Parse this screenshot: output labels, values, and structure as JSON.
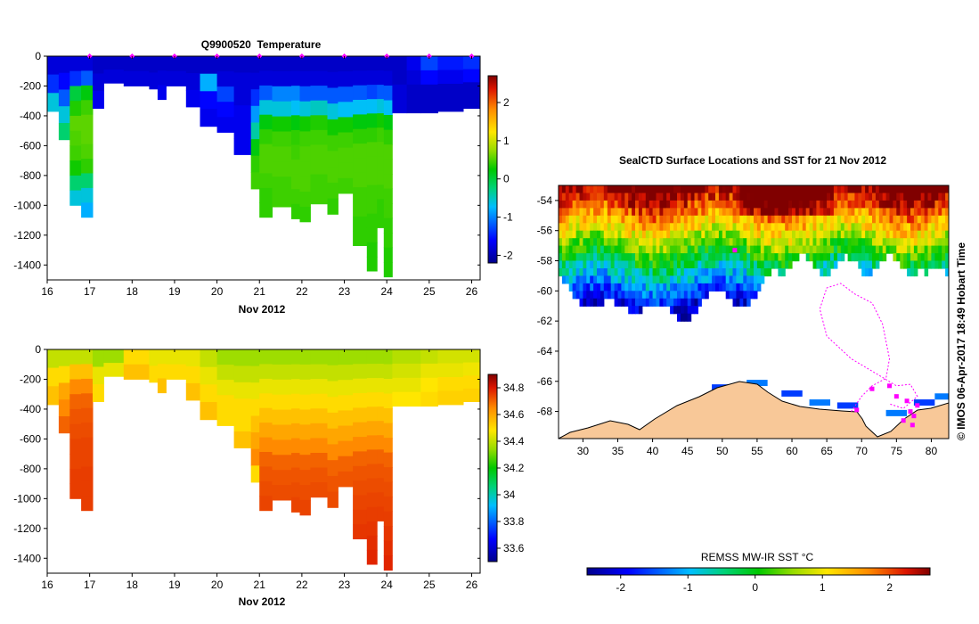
{
  "chart_data": [
    {
      "type": "heatmap",
      "title": "Q9900520  Temperature",
      "xlabel": "Nov 2012",
      "ylabel": "",
      "xlim": [
        16,
        26.2
      ],
      "ylim": [
        -1500,
        0
      ],
      "x_ticks": [
        16,
        17,
        18,
        19,
        20,
        21,
        22,
        23,
        24,
        25,
        26
      ],
      "y_ticks": [
        0,
        -200,
        -400,
        -600,
        -800,
        -1000,
        -1200,
        -1400
      ],
      "colorbar": {
        "min": -2.2,
        "max": 2.7,
        "ticks": [
          2,
          1,
          0,
          -1,
          -2
        ]
      },
      "profile_markers_x": [
        17.0,
        18.0,
        19.0,
        20.0,
        21.0,
        22.0,
        23.0,
        24.0,
        25.0,
        26.0
      ],
      "profiles": [
        {
          "x0": 16.0,
          "x1": 16.27,
          "depth": 370,
          "values": [
            -1.8,
            -1.4,
            -0.6
          ]
        },
        {
          "x0": 16.27,
          "x1": 16.53,
          "depth": 560,
          "values": [
            -1.8,
            -1.6,
            -1.2,
            -0.6,
            -0.2
          ]
        },
        {
          "x0": 16.53,
          "x1": 16.8,
          "depth": 1000,
          "values": [
            -1.8,
            -1.4,
            0.0,
            0.35,
            0.55,
            0.5,
            0.45,
            0.3,
            -0.2,
            -0.6
          ]
        },
        {
          "x0": 16.8,
          "x1": 17.07,
          "depth": 1080,
          "values": [
            -1.8,
            -1.2,
            0.2,
            0.45,
            0.55,
            0.55,
            0.5,
            0.4,
            -0.2,
            -0.6,
            -0.8
          ]
        },
        {
          "x0": 17.07,
          "x1": 17.33,
          "depth": 350,
          "values": [
            -1.9,
            -1.8,
            -1.7
          ]
        },
        {
          "x0": 17.33,
          "x1": 17.8,
          "depth": 180,
          "values": [
            -1.9,
            -1.8
          ]
        },
        {
          "x0": 17.8,
          "x1": 18.4,
          "depth": 200,
          "values": [
            -1.9,
            -1.8
          ]
        },
        {
          "x0": 18.4,
          "x1": 18.6,
          "depth": 220,
          "values": [
            -1.9,
            -1.8
          ]
        },
        {
          "x0": 18.6,
          "x1": 18.8,
          "depth": 290,
          "values": [
            -1.9,
            -1.8,
            -1.7
          ]
        },
        {
          "x0": 18.8,
          "x1": 19.27,
          "depth": 200,
          "values": [
            -1.9,
            -1.8
          ]
        },
        {
          "x0": 19.27,
          "x1": 19.6,
          "depth": 340,
          "values": [
            -1.9,
            -1.8,
            -1.7
          ]
        },
        {
          "x0": 19.6,
          "x1": 20.0,
          "depth": 470,
          "values": [
            -1.9,
            -0.8,
            -1.6,
            -1.7
          ]
        },
        {
          "x0": 20.0,
          "x1": 20.4,
          "depth": 510,
          "values": [
            -1.9,
            -1.8,
            -1.3,
            -1.6,
            -1.7
          ]
        },
        {
          "x0": 20.4,
          "x1": 20.8,
          "depth": 660,
          "values": [
            -1.9,
            -1.8,
            -1.8,
            -1.7,
            -1.7,
            -1.7
          ]
        },
        {
          "x0": 20.8,
          "x1": 21.0,
          "depth": 890,
          "values": [
            -1.9,
            -1.8,
            -1.4,
            -0.9,
            -0.4,
            0.2,
            0.4,
            0.45
          ]
        },
        {
          "x0": 21.0,
          "x1": 21.3,
          "depth": 1080,
          "values": [
            -1.9,
            -1.8,
            -1.2,
            -0.6,
            0.2,
            0.4,
            0.5,
            0.5,
            0.45,
            0.4,
            0.4
          ]
        },
        {
          "x0": 21.3,
          "x1": 21.75,
          "depth": 1010,
          "values": [
            -1.9,
            -1.8,
            -1.0,
            -0.6,
            0.3,
            0.45,
            0.5,
            0.5,
            0.45,
            0.45
          ]
        },
        {
          "x0": 21.75,
          "x1": 21.95,
          "depth": 1090,
          "values": [
            -1.9,
            -1.8,
            -1.0,
            -0.7,
            0.2,
            0.4,
            0.45,
            0.5,
            0.5,
            0.45,
            0.4
          ]
        },
        {
          "x0": 21.95,
          "x1": 22.2,
          "depth": 1110,
          "values": [
            -1.9,
            -1.8,
            -1.2,
            -0.6,
            0.3,
            0.45,
            0.5,
            0.5,
            0.5,
            0.45,
            0.4
          ]
        },
        {
          "x0": 22.2,
          "x1": 22.6,
          "depth": 990,
          "values": [
            -1.9,
            -1.8,
            -1.2,
            -0.5,
            0.35,
            0.45,
            0.5,
            0.5,
            0.45,
            0.45
          ]
        },
        {
          "x0": 22.6,
          "x1": 22.85,
          "depth": 1060,
          "values": [
            -1.9,
            -1.8,
            -1.2,
            -0.6,
            0.3,
            0.45,
            0.5,
            0.5,
            0.45,
            0.4
          ]
        },
        {
          "x0": 22.85,
          "x1": 23.2,
          "depth": 920,
          "values": [
            -1.9,
            -1.8,
            -1.2,
            -0.7,
            0.3,
            0.45,
            0.5,
            0.5,
            0.45
          ]
        },
        {
          "x0": 23.2,
          "x1": 23.53,
          "depth": 1270,
          "values": [
            -1.9,
            -1.8,
            -1.2,
            -0.7,
            0.2,
            0.4,
            0.5,
            0.5,
            0.5,
            0.45,
            0.45,
            0.4,
            0.4
          ]
        },
        {
          "x0": 23.53,
          "x1": 23.77,
          "depth": 1440,
          "values": [
            -1.9,
            -1.8,
            -1.3,
            -0.7,
            0.2,
            0.4,
            0.5,
            0.5,
            0.5,
            0.45,
            0.45,
            0.4,
            0.4,
            0.35,
            0.35
          ]
        },
        {
          "x0": 23.77,
          "x1": 23.93,
          "depth": 1150,
          "values": [
            -1.9,
            -1.8,
            -1.2,
            -0.6,
            0.3,
            0.45,
            0.5,
            0.5,
            0.5,
            0.45,
            0.4,
            0.4
          ]
        },
        {
          "x0": 23.93,
          "x1": 24.13,
          "depth": 1480,
          "values": [
            -1.9,
            -1.8,
            -1.2,
            -0.7,
            0.2,
            0.4,
            0.5,
            0.5,
            0.5,
            0.45,
            0.45,
            0.4,
            0.4,
            0.35,
            0.35
          ]
        },
        {
          "x0": 24.13,
          "x1": 24.47,
          "depth": 380,
          "values": [
            -1.9,
            -1.9,
            -1.8,
            -1.8
          ]
        },
        {
          "x0": 24.47,
          "x1": 24.8,
          "depth": 380,
          "values": [
            -1.7,
            -1.8,
            -1.9,
            -1.9
          ]
        },
        {
          "x0": 24.8,
          "x1": 25.2,
          "depth": 380,
          "values": [
            -1.3,
            -1.6,
            -1.9,
            -1.9
          ]
        },
        {
          "x0": 25.2,
          "x1": 25.8,
          "depth": 370,
          "values": [
            -1.5,
            -1.7,
            -1.9,
            -1.9
          ]
        },
        {
          "x0": 25.8,
          "x1": 26.2,
          "depth": 350,
          "values": [
            -1.4,
            -1.6,
            -1.9,
            -1.9
          ]
        }
      ]
    },
    {
      "type": "heatmap",
      "title": "",
      "xlabel": "Nov 2012",
      "ylabel": "",
      "xlim": [
        16,
        26.2
      ],
      "ylim": [
        -1500,
        0
      ],
      "x_ticks": [
        16,
        17,
        18,
        19,
        20,
        21,
        22,
        23,
        24,
        25,
        26
      ],
      "y_ticks": [
        0,
        -200,
        -400,
        -600,
        -800,
        -1000,
        -1200,
        -1400
      ],
      "colorbar": {
        "min": 33.5,
        "max": 34.9,
        "ticks": [
          34.8,
          34.6,
          34.4,
          34.2,
          34,
          33.8,
          33.6
        ]
      },
      "profiles": [
        {
          "x0": 16.0,
          "x1": 16.27,
          "depth": 370,
          "values": [
            34.4,
            34.5,
            34.55
          ]
        },
        {
          "x0": 16.27,
          "x1": 16.53,
          "depth": 560,
          "values": [
            34.4,
            34.5,
            34.6,
            34.65,
            34.7
          ]
        },
        {
          "x0": 16.53,
          "x1": 16.8,
          "depth": 1000,
          "values": [
            34.4,
            34.55,
            34.65,
            34.7,
            34.72,
            34.73,
            34.74,
            34.74,
            34.75,
            34.75
          ]
        },
        {
          "x0": 16.8,
          "x1": 17.07,
          "depth": 1080,
          "values": [
            34.4,
            34.55,
            34.65,
            34.7,
            34.72,
            34.73,
            34.74,
            34.74,
            34.75,
            34.75,
            34.75
          ]
        },
        {
          "x0": 17.07,
          "x1": 17.33,
          "depth": 350,
          "values": [
            34.35,
            34.45,
            34.5
          ]
        },
        {
          "x0": 17.33,
          "x1": 17.8,
          "depth": 180,
          "values": [
            34.35,
            34.45
          ]
        },
        {
          "x0": 17.8,
          "x1": 18.4,
          "depth": 200,
          "values": [
            34.5,
            34.55
          ]
        },
        {
          "x0": 18.4,
          "x1": 18.6,
          "depth": 220,
          "values": [
            34.45,
            34.5
          ]
        },
        {
          "x0": 18.6,
          "x1": 18.8,
          "depth": 290,
          "values": [
            34.45,
            34.5,
            34.55
          ]
        },
        {
          "x0": 18.8,
          "x1": 19.27,
          "depth": 200,
          "values": [
            34.45,
            34.5
          ]
        },
        {
          "x0": 19.27,
          "x1": 19.6,
          "depth": 340,
          "values": [
            34.45,
            34.5,
            34.55
          ]
        },
        {
          "x0": 19.6,
          "x1": 20.0,
          "depth": 470,
          "values": [
            34.4,
            34.45,
            34.5,
            34.55
          ]
        },
        {
          "x0": 20.0,
          "x1": 20.4,
          "depth": 510,
          "values": [
            34.35,
            34.4,
            34.45,
            34.5,
            34.5
          ]
        },
        {
          "x0": 20.4,
          "x1": 20.8,
          "depth": 660,
          "values": [
            34.35,
            34.4,
            34.45,
            34.5,
            34.5,
            34.55
          ]
        },
        {
          "x0": 20.8,
          "x1": 21.0,
          "depth": 890,
          "values": [
            34.35,
            34.4,
            34.45,
            34.5,
            34.55,
            34.6,
            34.65,
            34.5
          ]
        },
        {
          "x0": 21.0,
          "x1": 21.3,
          "depth": 1080,
          "values": [
            34.35,
            34.4,
            34.45,
            34.5,
            34.55,
            34.6,
            34.65,
            34.7,
            34.72,
            34.73,
            34.74
          ]
        },
        {
          "x0": 21.3,
          "x1": 21.75,
          "depth": 1010,
          "values": [
            34.35,
            34.4,
            34.45,
            34.5,
            34.55,
            34.6,
            34.65,
            34.7,
            34.72,
            34.73
          ]
        },
        {
          "x0": 21.75,
          "x1": 21.95,
          "depth": 1090,
          "values": [
            34.35,
            34.4,
            34.45,
            34.5,
            34.55,
            34.6,
            34.65,
            34.7,
            34.72,
            34.73,
            34.74
          ]
        },
        {
          "x0": 21.95,
          "x1": 22.2,
          "depth": 1110,
          "values": [
            34.35,
            34.4,
            34.45,
            34.5,
            34.55,
            34.6,
            34.65,
            34.7,
            34.72,
            34.73,
            34.74
          ]
        },
        {
          "x0": 22.2,
          "x1": 22.6,
          "depth": 990,
          "values": [
            34.35,
            34.4,
            34.45,
            34.5,
            34.55,
            34.6,
            34.65,
            34.7,
            34.72,
            34.73
          ]
        },
        {
          "x0": 22.6,
          "x1": 22.85,
          "depth": 1060,
          "values": [
            34.35,
            34.4,
            34.45,
            34.5,
            34.55,
            34.6,
            34.65,
            34.7,
            34.72,
            34.73
          ]
        },
        {
          "x0": 22.85,
          "x1": 23.2,
          "depth": 920,
          "values": [
            34.35,
            34.4,
            34.45,
            34.5,
            34.55,
            34.6,
            34.65,
            34.7,
            34.72
          ]
        },
        {
          "x0": 23.2,
          "x1": 23.53,
          "depth": 1270,
          "values": [
            34.35,
            34.4,
            34.45,
            34.5,
            34.55,
            34.6,
            34.65,
            34.7,
            34.72,
            34.73,
            34.74,
            34.75,
            34.76
          ]
        },
        {
          "x0": 23.53,
          "x1": 23.77,
          "depth": 1440,
          "values": [
            34.35,
            34.4,
            34.45,
            34.5,
            34.55,
            34.6,
            34.65,
            34.7,
            34.72,
            34.73,
            34.74,
            34.75,
            34.76,
            34.77,
            34.78
          ]
        },
        {
          "x0": 23.77,
          "x1": 23.93,
          "depth": 1150,
          "values": [
            34.35,
            34.4,
            34.45,
            34.5,
            34.55,
            34.6,
            34.65,
            34.7,
            34.72,
            34.73,
            34.74,
            34.75
          ]
        },
        {
          "x0": 23.93,
          "x1": 24.13,
          "depth": 1480,
          "values": [
            34.35,
            34.4,
            34.45,
            34.5,
            34.55,
            34.6,
            34.65,
            34.7,
            34.72,
            34.73,
            34.74,
            34.75,
            34.76,
            34.77,
            34.78
          ]
        },
        {
          "x0": 24.13,
          "x1": 24.47,
          "depth": 380,
          "values": [
            34.38,
            34.42,
            34.45,
            34.48
          ]
        },
        {
          "x0": 24.47,
          "x1": 24.8,
          "depth": 380,
          "values": [
            34.38,
            34.42,
            34.45,
            34.48
          ]
        },
        {
          "x0": 24.8,
          "x1": 25.2,
          "depth": 380,
          "values": [
            34.4,
            34.45,
            34.48,
            34.5
          ]
        },
        {
          "x0": 25.2,
          "x1": 25.8,
          "depth": 370,
          "values": [
            34.42,
            34.45,
            34.5,
            34.52
          ]
        },
        {
          "x0": 25.8,
          "x1": 26.2,
          "depth": 350,
          "values": [
            34.42,
            34.46,
            34.5,
            34.52
          ]
        }
      ]
    },
    {
      "type": "heatmap",
      "title": "SealCTD Surface Locations and SST for 21 Nov 2012",
      "xlabel": "",
      "ylabel": "",
      "xlim": [
        26.5,
        82.5
      ],
      "ylim": [
        -69.8,
        -53.0
      ],
      "x_ticks": [
        30,
        35,
        40,
        45,
        50,
        55,
        60,
        65,
        70,
        75,
        80
      ],
      "y_ticks": [
        -54,
        -56,
        -58,
        -60,
        -62,
        -64,
        -66,
        -68
      ],
      "colorbar_label": "REMSS MW-IR SST °C",
      "colorbar": {
        "min": -2.5,
        "max": 2.6,
        "ticks": [
          -2,
          -1,
          0,
          1,
          2
        ]
      },
      "seal_track": [
        [
          68.5,
          -68.0
        ],
        [
          70.0,
          -67.0
        ],
        [
          71.5,
          -66.3
        ],
        [
          73.5,
          -65.8
        ],
        [
          74.0,
          -64.5
        ],
        [
          73.0,
          -62.2
        ],
        [
          71.5,
          -60.8
        ],
        [
          69.0,
          -60.2
        ],
        [
          67.0,
          -59.5
        ],
        [
          65.0,
          -59.8
        ],
        [
          64.0,
          -61.2
        ],
        [
          65.0,
          -63.0
        ],
        [
          68.5,
          -64.5
        ],
        [
          72.5,
          -65.6
        ],
        [
          75.0,
          -66.3
        ],
        [
          77.0,
          -66.2
        ],
        [
          78.0,
          -67.0
        ],
        [
          76.0,
          -67.8
        ],
        [
          74.0,
          -67.5
        ]
      ],
      "seal_surface_locations": [
        [
          74.0,
          -66.3
        ],
        [
          75.0,
          -67.0
        ],
        [
          76.5,
          -67.3
        ],
        [
          77.0,
          -68.0
        ],
        [
          77.5,
          -68.3
        ],
        [
          76.0,
          -68.6
        ],
        [
          77.3,
          -68.9
        ],
        [
          71.5,
          -66.5
        ],
        [
          69.3,
          -67.9
        ],
        [
          78.0,
          -67.6
        ],
        [
          51.8,
          -57.3
        ]
      ]
    }
  ],
  "credit": "© IMOS 06-Apr-2017 18:49 Hobart Time",
  "colors": {
    "background": "#ffffff",
    "land": "#f8c898",
    "track": "#ff00ff"
  }
}
